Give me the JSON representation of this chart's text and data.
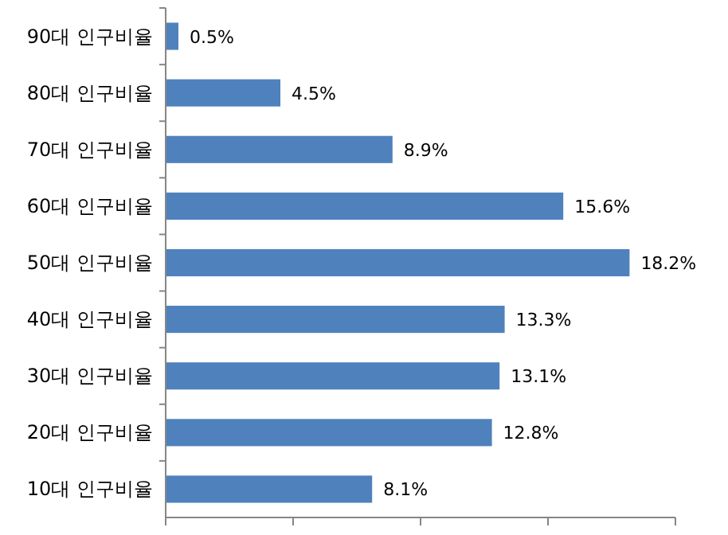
{
  "chart_data": {
    "type": "bar",
    "orientation": "horizontal",
    "categories": [
      "90대 인구비율",
      "80대 인구비율",
      "70대 인구비율",
      "60대 인구비율",
      "50대 인구비율",
      "40대 인구비율",
      "30대 인구비율",
      "20대 인구비율",
      "10대 인구비율"
    ],
    "values": [
      0.5,
      4.5,
      8.9,
      15.6,
      18.2,
      13.3,
      13.1,
      12.8,
      8.1
    ],
    "value_labels": [
      "0.5%",
      "4.5%",
      "8.9%",
      "15.6%",
      "18.2%",
      "13.3%",
      "13.1%",
      "12.8%",
      "8.1%"
    ],
    "color": "#4f81bd",
    "xlim": [
      0,
      20
    ],
    "xticks": [
      {
        "value": 0,
        "label": null
      },
      {
        "value": 5,
        "label": null
      },
      {
        "value": 10,
        "label": null
      },
      {
        "value": 15,
        "label": null
      },
      {
        "value": 20,
        "label": null
      }
    ],
    "tick_labels": "y",
    "grid": false
  }
}
